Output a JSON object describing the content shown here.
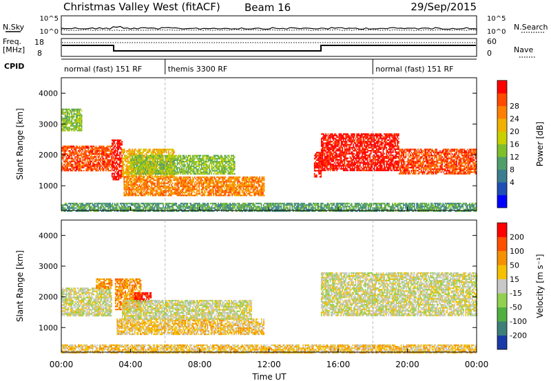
{
  "header": {
    "title": "Christmas Valley West (fitACF)",
    "beam": "Beam 16",
    "date": "29/Sep/2015"
  },
  "labels": {
    "nsky": "N.Sky",
    "nsearch": "N.Search",
    "freq_line1": "Freq.",
    "freq_line2": "[MHz]",
    "nave": "Nave",
    "cpid": "CPID",
    "time_axis": "Time UT"
  },
  "cpid_segments": [
    {
      "label": "normal (fast) 151 RF",
      "start": 0,
      "end": 6
    },
    {
      "label": "themis 3300 RF",
      "start": 6,
      "end": 18
    },
    {
      "label": "normal (fast) 151 RF",
      "start": 18,
      "end": 24
    }
  ],
  "noise_panel": {
    "left_ticks": [
      "10^5",
      "10^0"
    ],
    "right_ticks": [
      "10^5",
      "10^0"
    ]
  },
  "freq_panel": {
    "left_ticks": [
      "18",
      "8"
    ],
    "right_ticks": [
      "60",
      "0"
    ]
  },
  "chart_data": [
    {
      "type": "heatmap",
      "panel": "power",
      "xlabel": "Time UT",
      "ylabel": "Slant Range [km]",
      "x_ticks": [
        "00:00",
        "04:00",
        "08:00",
        "12:00",
        "16:00",
        "20:00",
        "00:00"
      ],
      "xlim_hours": [
        0,
        24
      ],
      "y_ticks": [
        1000,
        2000,
        3000,
        4000
      ],
      "ylim": [
        200,
        4500
      ],
      "colorbar": {
        "label": "Power [dB]",
        "ticks": [
          "4",
          "8",
          "12",
          "16",
          "20",
          "24",
          "28"
        ],
        "colors": [
          "#0000ff",
          "#1f4fb4",
          "#3c7d8f",
          "#4f9f6a",
          "#7fbf2a",
          "#c8d000",
          "#f0b000",
          "#ff8000",
          "#ff4a00",
          "#ff0000"
        ]
      },
      "bands": [
        {
          "start": 0.0,
          "end": 2.9,
          "lo": 1500,
          "hi": 2300,
          "level": 8
        },
        {
          "start": 0.0,
          "end": 1.2,
          "lo": 2800,
          "hi": 3500,
          "level": 4
        },
        {
          "start": 2.9,
          "end": 3.5,
          "lo": 1200,
          "hi": 2500,
          "level": 9
        },
        {
          "start": 3.5,
          "end": 6.5,
          "lo": 1300,
          "hi": 2200,
          "level": 6
        },
        {
          "start": 3.6,
          "end": 11.7,
          "lo": 700,
          "hi": 1300,
          "level": 7
        },
        {
          "start": 4.0,
          "end": 10.0,
          "lo": 1400,
          "hi": 2000,
          "level": 4
        },
        {
          "start": 14.6,
          "end": 15.0,
          "lo": 1300,
          "hi": 2100,
          "level": 9
        },
        {
          "start": 15.0,
          "end": 19.5,
          "lo": 1500,
          "hi": 2700,
          "level": 9
        },
        {
          "start": 19.5,
          "end": 24.0,
          "lo": 1400,
          "hi": 2200,
          "level": 8
        },
        {
          "start": 0.0,
          "end": 24.0,
          "lo": 200,
          "hi": 450,
          "level": 3
        }
      ]
    },
    {
      "type": "heatmap",
      "panel": "velocity",
      "xlabel": "Time UT",
      "ylabel": "Slant Range [km]",
      "x_ticks": [
        "00:00",
        "04:00",
        "08:00",
        "12:00",
        "16:00",
        "20:00",
        "00:00"
      ],
      "xlim_hours": [
        0,
        24
      ],
      "y_ticks": [
        1000,
        2000,
        3000,
        4000
      ],
      "ylim": [
        200,
        4500
      ],
      "colorbar": {
        "label": "Velocity [m s⁻¹]",
        "ticks": [
          "200",
          "100",
          "50",
          "15",
          "-15",
          "-50",
          "-100",
          "-200"
        ],
        "colors": [
          "#1a3aa8",
          "#3e7f78",
          "#4fb03f",
          "#92d050",
          "#c8c8c8",
          "#f5c000",
          "#f59000",
          "#ff5000",
          "#ff0000"
        ]
      },
      "bands": [
        {
          "start": 0.0,
          "end": 2.9,
          "lo": 1400,
          "hi": 2300,
          "level": 4
        },
        {
          "start": 2.0,
          "end": 2.9,
          "lo": 2300,
          "hi": 2600,
          "level": 6
        },
        {
          "start": 3.1,
          "end": 4.6,
          "lo": 1600,
          "hi": 2600,
          "level": 6
        },
        {
          "start": 4.2,
          "end": 5.2,
          "lo": 1850,
          "hi": 2150,
          "level": 8
        },
        {
          "start": 3.2,
          "end": 11.7,
          "lo": 800,
          "hi": 1300,
          "level": 5
        },
        {
          "start": 3.5,
          "end": 11.0,
          "lo": 1300,
          "hi": 1900,
          "level": 4
        },
        {
          "start": 15.0,
          "end": 24.0,
          "lo": 1400,
          "hi": 2800,
          "level": 4
        },
        {
          "start": 0.0,
          "end": 24.0,
          "lo": 200,
          "hi": 450,
          "level": 5
        }
      ]
    }
  ]
}
